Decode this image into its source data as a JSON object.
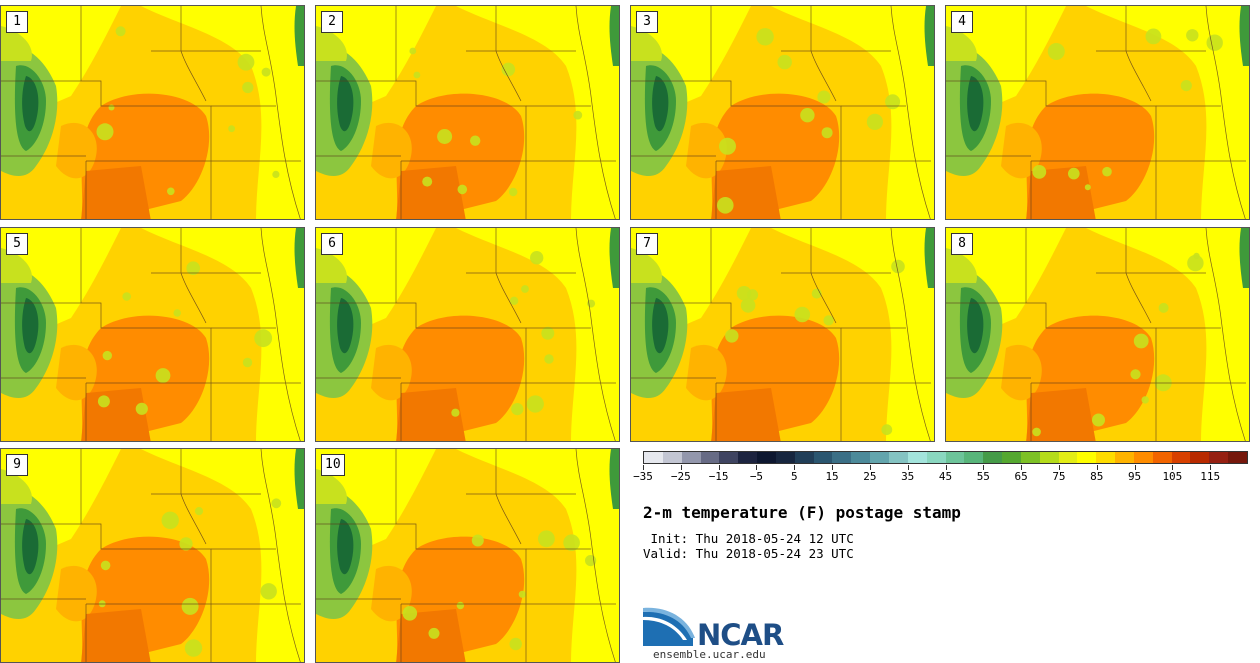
{
  "map": {
    "title": "2-m temperature (F) postage stamp",
    "init": " Init: Thu 2018-05-24 12 UTC",
    "valid": "Valid: Thu 2018-05-24 23 UTC",
    "panels": [
      "1",
      "2",
      "3",
      "4",
      "5",
      "6",
      "7",
      "8",
      "9",
      "10"
    ],
    "colorbar": {
      "min": -35,
      "max": 125,
      "step": 5,
      "tick_labels": [
        "−35",
        "−25",
        "−15",
        "−5",
        "5",
        "15",
        "25",
        "35",
        "45",
        "55",
        "65",
        "75",
        "85",
        "95",
        "105",
        "115"
      ],
      "colors": [
        "#e6e8ee",
        "#c3c6d3",
        "#9397ac",
        "#676b85",
        "#3f4461",
        "#1d2440",
        "#0d1730",
        "#17263f",
        "#213e58",
        "#2b5670",
        "#3b6f86",
        "#4c8a9a",
        "#63a5ad",
        "#84c3c2",
        "#a3e4dc",
        "#8ad7c0",
        "#6dc49a",
        "#58b57a",
        "#459b48",
        "#55a830",
        "#7dc126",
        "#b5dc1b",
        "#e3ed16",
        "#ffff00",
        "#ffdc00",
        "#ffb300",
        "#ff8c00",
        "#f26400",
        "#d84000",
        "#b82a00",
        "#962012",
        "#76180c"
      ]
    },
    "legend_colors": {
      "mountain_dark": "#1a6b35",
      "mountain_mid": "#3f9a3a",
      "mountain_light": "#8cc63f",
      "cool": "#c8e11e",
      "mild": "#ffff00",
      "warm": "#ffd200",
      "hot": "#ffb300",
      "hotter": "#ff8c00",
      "hottest": "#f27800",
      "border": "#5a3a1a",
      "panel_bg": "#ffcd00"
    }
  },
  "branding": {
    "logo_text": "NCAR",
    "url": "ensemble.ucar.edu"
  }
}
